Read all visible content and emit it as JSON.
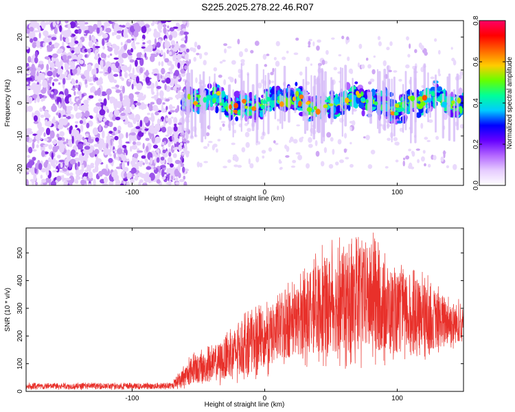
{
  "title": "S225.2025.278.22.46.R07",
  "chart_data": [
    {
      "type": "heatmap",
      "title": "S225.2025.278.22.46.R07",
      "xlabel": "Height of straight line (km)",
      "ylabel": "Frequency (Hz)",
      "xlim": [
        -180,
        150
      ],
      "ylim": [
        -25,
        25
      ],
      "xticks": [
        -100,
        0,
        100
      ],
      "yticks": [
        -20,
        -10,
        0,
        10,
        20
      ],
      "colorbar": {
        "label": "Normalized spectral amplitude",
        "range": [
          0,
          0.8
        ],
        "ticks": [
          0.0,
          0.2,
          0.4,
          0.6,
          0.8
        ],
        "tick_labels": [
          "0.0",
          "0.2",
          "0.4",
          "0.6",
          "0.8"
        ],
        "colormap": [
          "#ffffff",
          "#e6ccff",
          "#b366ff",
          "#6600ff",
          "#0000ff",
          "#00ccff",
          "#00ff99",
          "#66ff00",
          "#ffcc00",
          "#ff6600",
          "#ff0000",
          "#ff0066"
        ]
      },
      "regions": [
        {
          "name": "noise",
          "x_range": [
            -180,
            -62
          ],
          "f_range": [
            -25,
            25
          ],
          "amplitude": 0.06
        },
        {
          "name": "signal-band",
          "x_range": [
            -62,
            150
          ],
          "f_center": 0,
          "f_halfwidth": 5,
          "amplitude_range": [
            0.15,
            0.8
          ]
        }
      ]
    },
    {
      "type": "line",
      "xlabel": "Height of straight line (km)",
      "ylabel": "SNR (10 * v/v)",
      "xlim": [
        -180,
        150
      ],
      "ylim": [
        0,
        590
      ],
      "xticks": [
        -100,
        0,
        100
      ],
      "yticks": [
        0,
        100,
        200,
        300,
        400,
        500
      ],
      "color": "#e8302a",
      "envelope": [
        {
          "x": -180,
          "low": 5,
          "high": 32
        },
        {
          "x": -70,
          "low": 5,
          "high": 32
        },
        {
          "x": -55,
          "low": 10,
          "high": 140
        },
        {
          "x": -40,
          "low": 15,
          "high": 170
        },
        {
          "x": -20,
          "low": 25,
          "high": 270
        },
        {
          "x": 0,
          "low": 50,
          "high": 330
        },
        {
          "x": 25,
          "low": 90,
          "high": 420
        },
        {
          "x": 45,
          "low": 80,
          "high": 540
        },
        {
          "x": 80,
          "low": 80,
          "high": 590
        },
        {
          "x": 100,
          "low": 90,
          "high": 470
        },
        {
          "x": 125,
          "low": 110,
          "high": 420
        },
        {
          "x": 150,
          "low": 160,
          "high": 320
        }
      ]
    }
  ]
}
